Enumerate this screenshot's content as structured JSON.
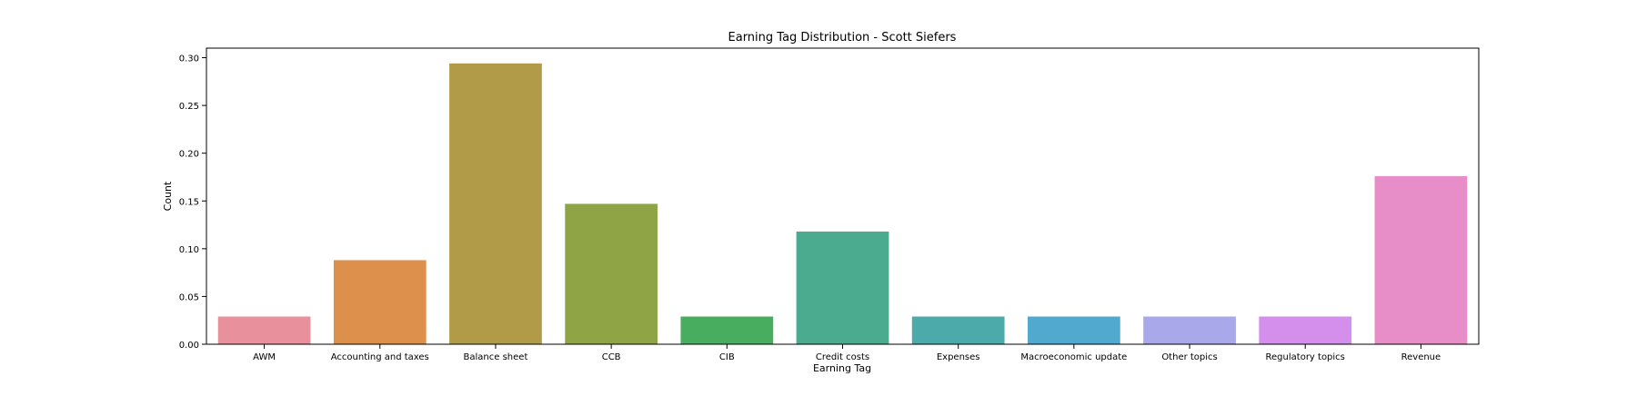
{
  "chart_data": {
    "type": "bar",
    "title": "Earning Tag Distribution - Scott Siefers",
    "xlabel": "Earning Tag",
    "ylabel": "Count",
    "ylim": [
      0,
      0.31
    ],
    "yticks": [
      "0.00",
      "0.05",
      "0.10",
      "0.15",
      "0.20",
      "0.25",
      "0.30"
    ],
    "ytick_values": [
      0,
      0.05,
      0.1,
      0.15,
      0.2,
      0.25,
      0.3
    ],
    "categories": [
      "AWM",
      "Accounting and taxes",
      "Balance sheet",
      "CCB",
      "CIB",
      "Credit costs",
      "Expenses",
      "Macroeconomic update",
      "Other topics",
      "Regulatory topics",
      "Revenue"
    ],
    "values": [
      0.029,
      0.088,
      0.294,
      0.147,
      0.029,
      0.118,
      0.029,
      0.029,
      0.029,
      0.029,
      0.176
    ],
    "colors": [
      "#e8919d",
      "#dc904c",
      "#b29b48",
      "#8fa545",
      "#49ad60",
      "#4aab8f",
      "#4caaab",
      "#51a9cf",
      "#a9a8eb",
      "#d38feb",
      "#e78dc8"
    ],
    "grid": false,
    "legend": "none"
  }
}
